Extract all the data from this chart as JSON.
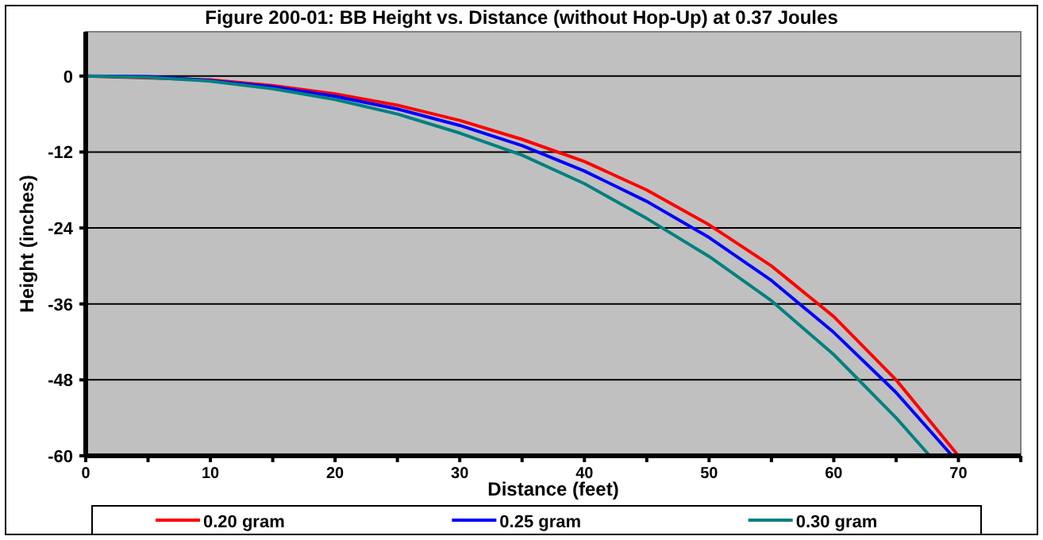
{
  "chart_data": {
    "type": "line",
    "title": "Figure 200-01:  BB Height vs. Distance (without Hop-Up) at 0.37 Joules",
    "xlabel": "Distance (feet)",
    "ylabel": "Height (inches)",
    "xlim": [
      0,
      75
    ],
    "xticks": [
      0,
      {
        "value": 5,
        "label": null
      },
      10,
      {
        "value": 15,
        "label": null
      },
      20,
      {
        "value": 25,
        "label": null
      },
      30,
      {
        "value": 35,
        "label": null
      },
      40,
      {
        "value": 45,
        "label": null
      },
      50,
      {
        "value": 55,
        "label": null
      },
      60,
      {
        "value": 65,
        "label": null
      },
      70,
      {
        "value": 75,
        "label": null
      }
    ],
    "ylim": [
      -60,
      7
    ],
    "yticks": [
      0,
      -12,
      -24,
      -36,
      -48,
      -60
    ],
    "grid": "y",
    "legend": "bottom",
    "marker": "none",
    "line_style": "solid",
    "series": [
      {
        "name": "0.20 gram",
        "color": "#ff0000",
        "x": [
          0,
          10,
          15,
          20,
          25,
          30,
          35,
          40,
          45,
          50,
          55,
          60,
          65,
          70
        ],
        "values": [
          0,
          -0.6,
          -1.5,
          -2.8,
          -4.6,
          -7,
          -10,
          -13.5,
          -18,
          -23.5,
          -30,
          -38,
          -48,
          -60
        ]
      },
      {
        "name": "0.25 gram",
        "color": "#0000ff",
        "x": [
          0,
          5,
          10,
          15,
          20,
          25,
          30,
          35,
          40,
          45,
          50,
          55,
          60,
          65,
          69.5
        ],
        "values": [
          0,
          -0.1,
          -0.7,
          -1.7,
          -3.2,
          -5.2,
          -7.8,
          -11,
          -15,
          -19.8,
          -25.5,
          -32.3,
          -40.5,
          -50,
          -60
        ]
      },
      {
        "name": "0.30 gram",
        "color": "#008080",
        "x": [
          0,
          5,
          10,
          15,
          20,
          25,
          30,
          35,
          40,
          45,
          50,
          55,
          60,
          65,
          67.7
        ],
        "values": [
          0,
          -0.2,
          -0.8,
          -2,
          -3.7,
          -6,
          -9,
          -12.5,
          -17,
          -22.5,
          -28.5,
          -35.5,
          -44,
          -54,
          -60
        ]
      }
    ]
  }
}
